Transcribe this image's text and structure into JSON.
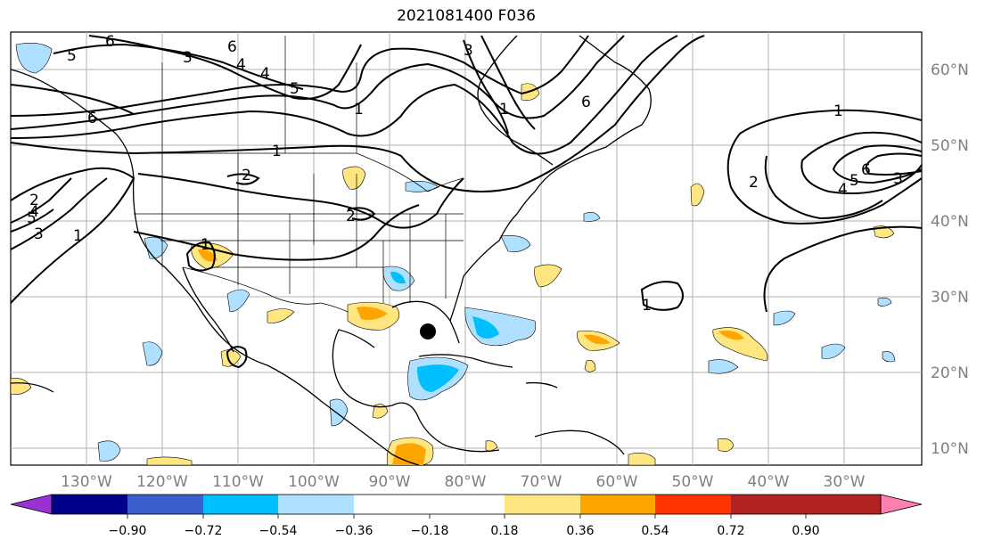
{
  "title": "2021081400 F036",
  "lon_ticks": [
    "130°W",
    "120°W",
    "110°W",
    "100°W",
    "90°W",
    "80°W",
    "70°W",
    "60°W",
    "50°W",
    "40°W",
    "30°W"
  ],
  "lat_ticks": [
    "60°N",
    "50°N",
    "40°N",
    "30°N",
    "20°N",
    "10°N"
  ],
  "contour_labels": [
    "6",
    "5",
    "6",
    "4",
    "3",
    "1",
    "6",
    "5",
    "4",
    "3",
    "1",
    "2",
    "2",
    "1",
    "1",
    "2",
    "1",
    "4",
    "5",
    "3",
    "1",
    "6",
    "2",
    "3",
    "6",
    "5",
    "4",
    "1"
  ],
  "colorbar": {
    "labels": [
      "−0.90",
      "−0.72",
      "−0.54",
      "−0.36",
      "−0.18",
      "0.18",
      "0.36",
      "0.54",
      "0.72",
      "0.90"
    ],
    "colors": [
      "#9b30d4",
      "#00008b",
      "#3a5fcd",
      "#00bfff",
      "#b0e0ff",
      "#ffffff",
      "#ffe680",
      "#ffa500",
      "#ff3300",
      "#b22222",
      "#ff7fb0"
    ]
  },
  "marker": "storm-center"
}
